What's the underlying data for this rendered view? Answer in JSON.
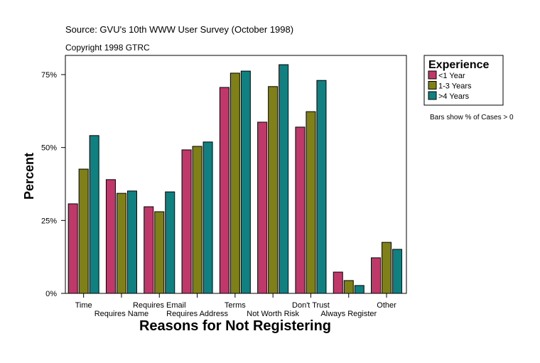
{
  "chart_data": {
    "type": "bar",
    "source": "Source: GVU's 10th WWW User Survey (October 1998)",
    "copyright": "Copyright 1998 GTRC",
    "xlabel": "Reasons for Not Registering",
    "ylabel": "Percent",
    "ylim": [
      0,
      85
    ],
    "yticks": [
      0,
      25,
      50,
      75
    ],
    "ytick_labels": [
      "0%",
      "25%",
      "50%",
      "75%"
    ],
    "grid": false,
    "legend_title": "Experience",
    "legend_placement": "right",
    "note": "Bars show % of Cases > 0",
    "categories": [
      "Time",
      "Requires Name",
      "Requires Email",
      "Requires Address",
      "Terms",
      "Not Worth Risk",
      "Don't Trust",
      "Always Register",
      "Other"
    ],
    "series": [
      {
        "name": "<1 Year",
        "color": "#c0386a",
        "values": [
          30.7,
          39.0,
          29.7,
          49.2,
          70.6,
          58.7,
          57.0,
          7.3,
          12.2
        ]
      },
      {
        "name": "1-3 Years",
        "color": "#808018",
        "values": [
          42.6,
          34.3,
          28.0,
          50.4,
          75.5,
          70.9,
          62.3,
          4.4,
          17.5
        ]
      },
      {
        "name": ">4 Years",
        "color": "#108080",
        "values": [
          54.1,
          35.1,
          34.8,
          51.9,
          76.2,
          78.4,
          73.0,
          2.7,
          15.1
        ]
      }
    ]
  }
}
